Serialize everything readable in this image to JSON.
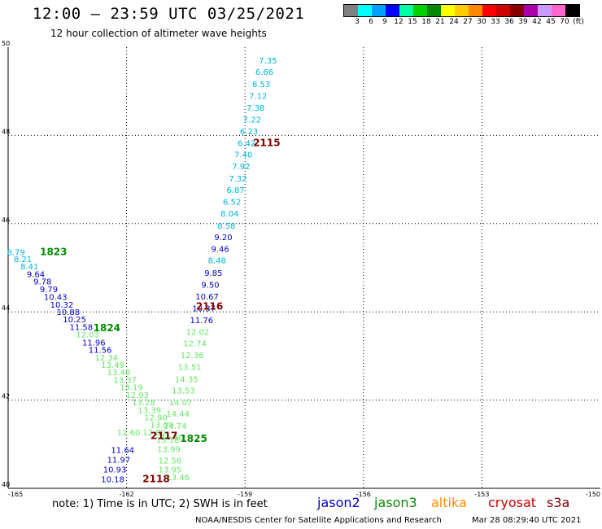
{
  "title": "12:00 – 23:59 UTC 03/25/2021",
  "subtitle": "12 hour collection of altimeter wave heights",
  "legend": {
    "colors": [
      "#808080",
      "#00ffff",
      "#00a0ff",
      "#0000ff",
      "#00ffa0",
      "#00d000",
      "#008800",
      "#ffff00",
      "#ffcc00",
      "#ff8800",
      "#ff0000",
      "#cc0000",
      "#880000",
      "#aa00aa",
      "#cc99ff",
      "#ff66cc",
      "#000000"
    ],
    "ticks": [
      "3",
      "6",
      "9",
      "12",
      "15",
      "18",
      "21",
      "24",
      "27",
      "30",
      "33",
      "36",
      "39",
      "42",
      "45",
      "70",
      "(ft)"
    ]
  },
  "colors": {
    "cyan_band": "#00b4dc",
    "blue_band": "#0000c8",
    "light_green_band": "#64e664",
    "green_band": "#008c00",
    "dark_red_label": "#800000"
  },
  "chart_data": {
    "type": "scatter",
    "xlim": [
      -165,
      -150
    ],
    "ylim": [
      40,
      50
    ],
    "xticks": [
      "-165",
      "-162",
      "-159",
      "-156",
      "-153",
      "-150"
    ],
    "yticks": [
      "50",
      "48",
      "46",
      "44",
      "42",
      "40"
    ],
    "grid": true,
    "points": [
      {
        "lon": -158.42,
        "lat": 49.63,
        "v": "7.35",
        "c": "cyan_band"
      },
      {
        "lon": -158.51,
        "lat": 49.37,
        "v": "6.66",
        "c": "cyan_band"
      },
      {
        "lon": -158.59,
        "lat": 49.1,
        "v": "8.53",
        "c": "cyan_band"
      },
      {
        "lon": -158.67,
        "lat": 48.83,
        "v": "7.12",
        "c": "cyan_band"
      },
      {
        "lon": -158.73,
        "lat": 48.56,
        "v": "7.38",
        "c": "cyan_band"
      },
      {
        "lon": -158.82,
        "lat": 48.29,
        "v": "7.22",
        "c": "cyan_band"
      },
      {
        "lon": -158.9,
        "lat": 48.03,
        "v": "6.23",
        "c": "cyan_band"
      },
      {
        "lon": -158.96,
        "lat": 47.76,
        "v": "6.42",
        "c": "cyan_band"
      },
      {
        "lon": -159.04,
        "lat": 47.5,
        "v": "7.40",
        "c": "cyan_band"
      },
      {
        "lon": -159.1,
        "lat": 47.23,
        "v": "7.92",
        "c": "cyan_band"
      },
      {
        "lon": -159.18,
        "lat": 46.96,
        "v": "7.32",
        "c": "cyan_band"
      },
      {
        "lon": -159.24,
        "lat": 46.7,
        "v": "6.87",
        "c": "cyan_band"
      },
      {
        "lon": -159.33,
        "lat": 46.43,
        "v": "6.52",
        "c": "cyan_band"
      },
      {
        "lon": -159.39,
        "lat": 46.16,
        "v": "8.04",
        "c": "cyan_band"
      },
      {
        "lon": -159.47,
        "lat": 45.89,
        "v": "8.58",
        "c": "cyan_band"
      },
      {
        "lon": -159.55,
        "lat": 45.63,
        "v": "9.20",
        "c": "blue_band"
      },
      {
        "lon": -159.63,
        "lat": 45.36,
        "v": "9.46",
        "c": "blue_band"
      },
      {
        "lon": -159.71,
        "lat": 45.1,
        "v": "8.48",
        "c": "cyan_band"
      },
      {
        "lon": -159.8,
        "lat": 44.82,
        "v": "9.85",
        "c": "blue_band"
      },
      {
        "lon": -159.88,
        "lat": 44.55,
        "v": "9.50",
        "c": "blue_band"
      },
      {
        "lon": -159.96,
        "lat": 44.28,
        "v": "10.67",
        "c": "blue_band"
      },
      {
        "lon": -160.04,
        "lat": 44.01,
        "v": "10.37",
        "c": "blue_band"
      },
      {
        "lon": -160.1,
        "lat": 43.75,
        "v": "11.76",
        "c": "blue_band"
      },
      {
        "lon": -160.2,
        "lat": 43.48,
        "v": "12.02",
        "c": "light_green_band"
      },
      {
        "lon": -160.27,
        "lat": 43.22,
        "v": "12.74",
        "c": "light_green_band"
      },
      {
        "lon": -160.34,
        "lat": 42.95,
        "v": "12.36",
        "c": "light_green_band"
      },
      {
        "lon": -160.4,
        "lat": 42.68,
        "v": "13.51",
        "c": "light_green_band"
      },
      {
        "lon": -160.48,
        "lat": 42.41,
        "v": "14.35",
        "c": "light_green_band"
      },
      {
        "lon": -160.56,
        "lat": 42.15,
        "v": "13.53",
        "c": "light_green_band"
      },
      {
        "lon": -160.63,
        "lat": 41.88,
        "v": "14.07",
        "c": "light_green_band"
      },
      {
        "lon": -160.7,
        "lat": 41.62,
        "v": "14.44",
        "c": "light_green_band"
      },
      {
        "lon": -160.77,
        "lat": 41.35,
        "v": "14.74",
        "c": "light_green_band"
      },
      {
        "lon": -160.85,
        "lat": 41.09,
        "v": "14.40",
        "c": "light_green_band"
      },
      {
        "lon": -160.93,
        "lat": 40.82,
        "v": "13.99",
        "c": "light_green_band"
      },
      {
        "lon": -164.8,
        "lat": 45.29,
        "v": "8.79",
        "c": "cyan_band"
      },
      {
        "lon": -164.63,
        "lat": 45.13,
        "v": "8.21",
        "c": "cyan_band"
      },
      {
        "lon": -164.46,
        "lat": 44.96,
        "v": "8.41",
        "c": "cyan_band"
      },
      {
        "lon": -164.3,
        "lat": 44.79,
        "v": "9.64",
        "c": "blue_band"
      },
      {
        "lon": -164.13,
        "lat": 44.62,
        "v": "9.78",
        "c": "blue_band"
      },
      {
        "lon": -163.97,
        "lat": 44.45,
        "v": "9.79",
        "c": "blue_band"
      },
      {
        "lon": -163.8,
        "lat": 44.27,
        "v": "10.43",
        "c": "blue_band"
      },
      {
        "lon": -163.64,
        "lat": 44.1,
        "v": "10.32",
        "c": "blue_band"
      },
      {
        "lon": -163.48,
        "lat": 43.93,
        "v": "10.88",
        "c": "blue_band"
      },
      {
        "lon": -163.32,
        "lat": 43.76,
        "v": "10.25",
        "c": "blue_band"
      },
      {
        "lon": -163.15,
        "lat": 43.59,
        "v": "11.58",
        "c": "blue_band"
      },
      {
        "lon": -162.99,
        "lat": 43.42,
        "v": "12.03",
        "c": "light_green_band"
      },
      {
        "lon": -162.83,
        "lat": 43.24,
        "v": "11.96",
        "c": "blue_band"
      },
      {
        "lon": -162.67,
        "lat": 43.07,
        "v": "11.56",
        "c": "blue_band"
      },
      {
        "lon": -162.51,
        "lat": 42.9,
        "v": "12.34",
        "c": "light_green_band"
      },
      {
        "lon": -162.35,
        "lat": 42.73,
        "v": "13.49",
        "c": "light_green_band"
      },
      {
        "lon": -162.2,
        "lat": 42.56,
        "v": "13.48",
        "c": "light_green_band"
      },
      {
        "lon": -162.04,
        "lat": 42.39,
        "v": "13.37",
        "c": "light_green_band"
      },
      {
        "lon": -161.88,
        "lat": 42.22,
        "v": "13.19",
        "c": "light_green_band"
      },
      {
        "lon": -161.73,
        "lat": 42.05,
        "v": "12.93",
        "c": "light_green_band"
      },
      {
        "lon": -161.57,
        "lat": 41.88,
        "v": "13.28",
        "c": "light_green_band"
      },
      {
        "lon": -161.42,
        "lat": 41.71,
        "v": "13.39",
        "c": "light_green_band"
      },
      {
        "lon": -161.26,
        "lat": 41.54,
        "v": "12.90",
        "c": "light_green_band"
      },
      {
        "lon": -161.11,
        "lat": 41.37,
        "v": "13.09",
        "c": "light_green_band"
      },
      {
        "lon": -161.3,
        "lat": 41.2,
        "v": "12.80",
        "c": "light_green_band"
      },
      {
        "lon": -160.96,
        "lat": 41.03,
        "v": "13.18",
        "c": "light_green_band"
      },
      {
        "lon": -161.95,
        "lat": 41.2,
        "v": "12.60",
        "c": "light_green_band"
      },
      {
        "lon": -160.9,
        "lat": 40.56,
        "v": "12.56",
        "c": "light_green_band"
      },
      {
        "lon": -160.9,
        "lat": 40.36,
        "v": "13.95",
        "c": "light_green_band"
      },
      {
        "lon": -160.7,
        "lat": 40.18,
        "v": "13.46",
        "c": "light_green_band"
      },
      {
        "lon": -162.1,
        "lat": 40.8,
        "v": "11.64",
        "c": "blue_band"
      },
      {
        "lon": -162.2,
        "lat": 40.58,
        "v": "11.97",
        "c": "blue_band"
      },
      {
        "lon": -162.3,
        "lat": 40.36,
        "v": "10.93",
        "c": "blue_band"
      },
      {
        "lon": -162.35,
        "lat": 40.14,
        "v": "10.18",
        "c": "blue_band"
      }
    ],
    "time_labels": [
      {
        "lon": -158.45,
        "lat": 47.76,
        "v": "2115",
        "c": "dark_red_label"
      },
      {
        "lon": -159.9,
        "lat": 44.05,
        "v": "2116",
        "c": "dark_red_label"
      },
      {
        "lon": -163.85,
        "lat": 45.29,
        "v": "1823",
        "c": "green_band"
      },
      {
        "lon": -162.5,
        "lat": 43.56,
        "v": "1824",
        "c": "green_band"
      },
      {
        "lon": -161.05,
        "lat": 41.12,
        "v": "2117",
        "c": "dark_red_label"
      },
      {
        "lon": -160.3,
        "lat": 41.05,
        "v": "1825",
        "c": "green_band"
      },
      {
        "lon": -161.25,
        "lat": 40.14,
        "v": "2118",
        "c": "dark_red_label"
      }
    ]
  },
  "note": "note:  1) Time is in UTC;  2) SWH is in feet",
  "satellites": [
    {
      "label": "jason2",
      "color": "#0000c8"
    },
    {
      "label": "jason3",
      "color": "#008c00"
    },
    {
      "label": "altika",
      "color": "#ff8c00"
    },
    {
      "label": "cryosat",
      "color": "#c80000"
    },
    {
      "label": "s3a",
      "color": "#800000"
    }
  ],
  "footer": {
    "left": "NOAA/NESDIS Center for Satellite Applications and Research",
    "right": "Mar 28 08:29:40 UTC 2021"
  }
}
